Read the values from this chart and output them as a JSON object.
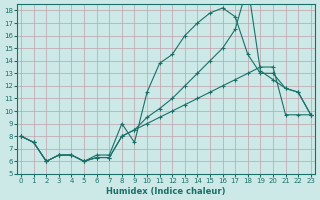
{
  "xlabel": "Humidex (Indice chaleur)",
  "xlim": [
    -0.3,
    23.3
  ],
  "ylim": [
    5,
    18.5
  ],
  "xticks": [
    0,
    1,
    2,
    3,
    4,
    5,
    6,
    7,
    8,
    9,
    10,
    11,
    12,
    13,
    14,
    15,
    16,
    17,
    18,
    19,
    20,
    21,
    22,
    23
  ],
  "yticks": [
    5,
    6,
    7,
    8,
    9,
    10,
    11,
    12,
    13,
    14,
    15,
    16,
    17,
    18
  ],
  "bg_color": "#cde9e7",
  "grid_color": "#c0a0aa",
  "line_color": "#1a7068",
  "curve1_x": [
    0,
    1,
    2,
    3,
    4,
    5,
    6,
    7,
    8,
    9,
    10,
    11,
    12,
    13,
    14,
    15,
    16,
    17,
    18,
    19,
    20,
    21,
    22,
    23
  ],
  "curve1_y": [
    8.0,
    7.5,
    6.0,
    6.5,
    6.5,
    6.0,
    6.5,
    6.5,
    9.0,
    7.5,
    11.5,
    13.8,
    14.5,
    16.0,
    17.0,
    17.8,
    18.2,
    17.5,
    14.5,
    13.0,
    13.0,
    11.8,
    11.5,
    9.7
  ],
  "curve2_x": [
    0,
    1,
    2,
    3,
    4,
    5,
    6,
    7,
    8,
    9,
    10,
    11,
    12,
    13,
    14,
    15,
    16,
    17,
    18,
    19,
    20,
    21,
    22,
    23
  ],
  "curve2_y": [
    8.0,
    7.5,
    6.0,
    6.5,
    6.5,
    6.0,
    6.3,
    6.3,
    8.0,
    8.5,
    9.5,
    10.2,
    11.0,
    12.0,
    13.0,
    14.0,
    15.0,
    16.5,
    20.0,
    13.2,
    12.5,
    11.8,
    11.5,
    9.7
  ],
  "curve3_x": [
    0,
    1,
    2,
    3,
    4,
    5,
    6,
    7,
    8,
    9,
    10,
    11,
    12,
    13,
    14,
    15,
    16,
    17,
    18,
    19,
    20,
    21,
    22,
    23
  ],
  "curve3_y": [
    8.0,
    7.5,
    6.0,
    6.5,
    6.5,
    6.0,
    6.3,
    6.3,
    8.0,
    8.5,
    9.0,
    9.5,
    10.0,
    10.5,
    11.0,
    11.5,
    12.0,
    12.5,
    13.0,
    13.5,
    13.5,
    9.7,
    9.7,
    9.7
  ]
}
